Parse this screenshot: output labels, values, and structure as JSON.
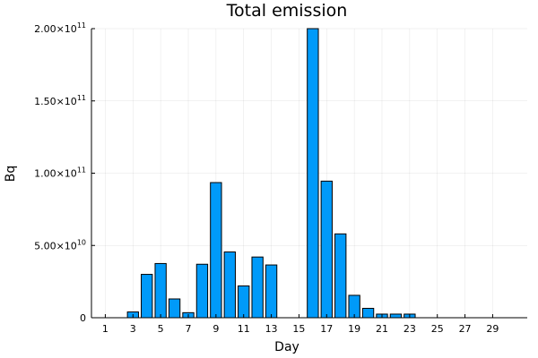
{
  "chart_data": {
    "type": "bar",
    "title": "Total emission",
    "xlabel": "Day",
    "ylabel": "Bq",
    "x": [
      1,
      2,
      3,
      4,
      5,
      6,
      7,
      8,
      9,
      10,
      11,
      12,
      13,
      14,
      15,
      16,
      17,
      18,
      19,
      20,
      21,
      22,
      23,
      24,
      25,
      26,
      27,
      28,
      29,
      30
    ],
    "values": [
      0,
      0,
      4000000000.0,
      30000000000.0,
      37500000000.0,
      13000000000.0,
      3500000000.0,
      37000000000.0,
      93500000000.0,
      45500000000.0,
      22000000000.0,
      42000000000.0,
      36500000000.0,
      0,
      0,
      200000000000.0,
      94500000000.0,
      58000000000.0,
      15500000000.0,
      6500000000.0,
      2500000000.0,
      2500000000.0,
      2500000000.0,
      0,
      0,
      0,
      0,
      0,
      0,
      0
    ],
    "x_ticks": [
      1,
      3,
      5,
      7,
      9,
      11,
      13,
      15,
      17,
      19,
      21,
      23,
      25,
      27,
      29
    ],
    "x_tick_labels": [
      "1",
      "3",
      "5",
      "7",
      "9",
      "11",
      "13",
      "15",
      "17",
      "19",
      "21",
      "23",
      "25",
      "27",
      "29"
    ],
    "ylim": [
      0,
      200000000000.0
    ],
    "y_ticks": [
      0,
      50000000000.0,
      100000000000.0,
      150000000000.0,
      200000000000.0
    ],
    "y_tick_labels": [
      {
        "mantissa": "0",
        "exponent": ""
      },
      {
        "mantissa": "5.00×10",
        "exponent": "10"
      },
      {
        "mantissa": "1.00×10",
        "exponent": "11"
      },
      {
        "mantissa": "1.50×10",
        "exponent": "11"
      },
      {
        "mantissa": "2.00×10",
        "exponent": "11"
      }
    ],
    "bar_color": "#009af9",
    "grid": true,
    "legend": "none"
  }
}
